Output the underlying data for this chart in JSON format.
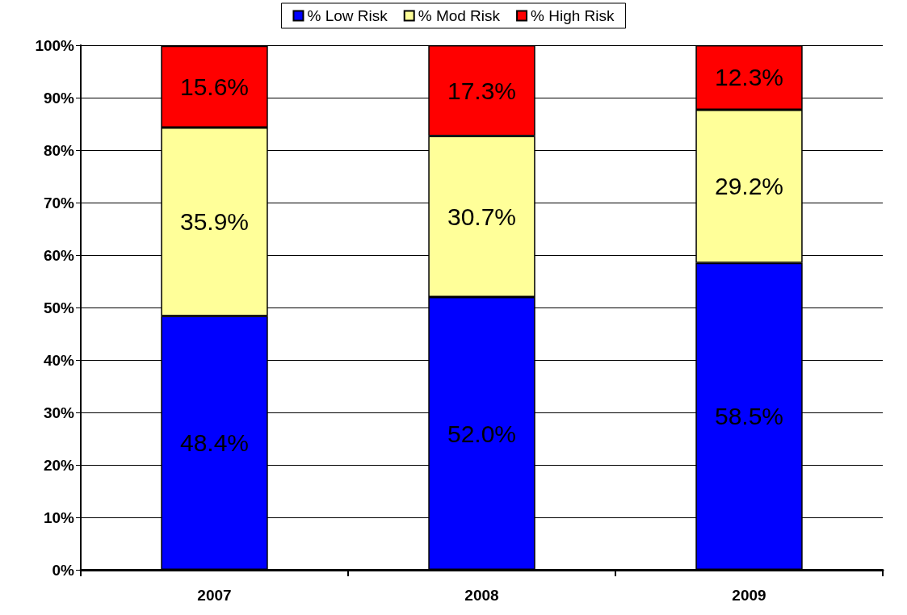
{
  "chart_data": {
    "type": "bar",
    "stacked": true,
    "categories": [
      "2007",
      "2008",
      "2009"
    ],
    "series": [
      {
        "name": "% Low Risk",
        "color": "#0000ff",
        "values": [
          48.4,
          52.0,
          58.5
        ],
        "value_labels": [
          "48.4%",
          "52.0%",
          "58.5%"
        ]
      },
      {
        "name": "% Mod Risk",
        "color": "#ffff99",
        "values": [
          35.9,
          30.7,
          29.2
        ],
        "value_labels": [
          "35.9%",
          "30.7%",
          "29.2%"
        ]
      },
      {
        "name": "% High Risk",
        "color": "#ff0000",
        "values": [
          15.6,
          17.3,
          12.3
        ],
        "value_labels": [
          "15.6%",
          "17.3%",
          "12.3%"
        ]
      }
    ],
    "ylim": [
      0,
      100
    ],
    "yticks": [
      {
        "value": 0,
        "label": "0%"
      },
      {
        "value": 10,
        "label": "10%"
      },
      {
        "value": 20,
        "label": "20%"
      },
      {
        "value": 30,
        "label": "30%"
      },
      {
        "value": 40,
        "label": "40%"
      },
      {
        "value": 50,
        "label": "50%"
      },
      {
        "value": 60,
        "label": "60%"
      },
      {
        "value": 70,
        "label": "70%"
      },
      {
        "value": 80,
        "label": "80%"
      },
      {
        "value": 90,
        "label": "90%"
      },
      {
        "value": 100,
        "label": "100%"
      }
    ],
    "grid": "y",
    "legend": "top"
  }
}
